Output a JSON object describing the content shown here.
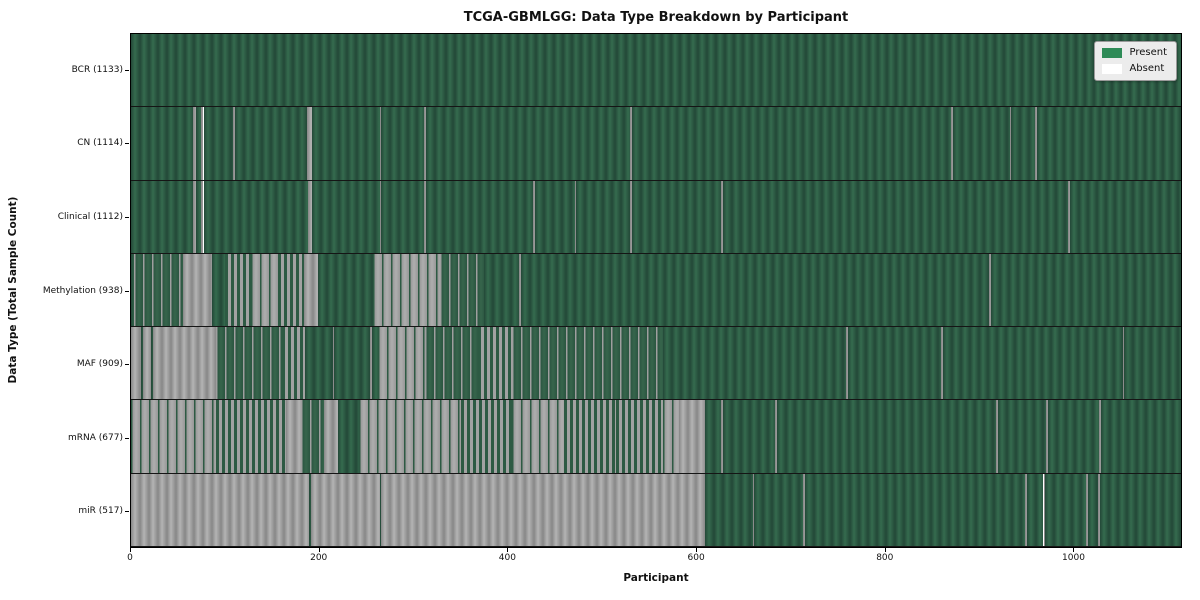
{
  "chart_data": {
    "type": "heatmap",
    "title": "TCGA-GBMLGG: Data Type Breakdown by Participant",
    "xlabel": "Participant",
    "ylabel": "Data Type (Total Sample Count)",
    "axis_max": 1115,
    "x_ticks": [
      0,
      200,
      400,
      600,
      800,
      1000
    ],
    "grid": false,
    "legend_position": "upper right",
    "legend": [
      {
        "label": "Present",
        "color": "#2e8b57"
      },
      {
        "label": "Absent",
        "color": "#ffffff"
      }
    ],
    "colors": {
      "present_fill": "#2e5c44",
      "present_stripe": "#356b4e",
      "absent_fill": "#9b9b9b",
      "absent_stripe": "#b4b4b4",
      "row_divider": "#151515",
      "legend_bg": "#ececec"
    },
    "segment_types": {
      "P": "present",
      "A": "absent",
      "M": "mixed",
      "SA": "mostly-present-scattered-absent",
      "SP": "mostly-absent-scattered-present"
    },
    "rows": [
      {
        "name": "BCR",
        "count": 1133,
        "label": "BCR (1133)",
        "segments": [
          [
            0,
            1115,
            "P"
          ]
        ]
      },
      {
        "name": "CN",
        "count": 1114,
        "label": "CN (1114)",
        "segments": [
          [
            0,
            66,
            "P"
          ],
          [
            66,
            69,
            "A"
          ],
          [
            69,
            74,
            "P"
          ],
          [
            74,
            77,
            "A"
          ],
          [
            77,
            108,
            "P"
          ],
          [
            108,
            110,
            "A"
          ],
          [
            110,
            187,
            "P"
          ],
          [
            187,
            192,
            "A"
          ],
          [
            192,
            264,
            "P"
          ],
          [
            264,
            266,
            "A"
          ],
          [
            266,
            311,
            "P"
          ],
          [
            311,
            313,
            "A"
          ],
          [
            313,
            530,
            "P"
          ],
          [
            530,
            532,
            "A"
          ],
          [
            532,
            871,
            "P"
          ],
          [
            871,
            873,
            "A"
          ],
          [
            873,
            933,
            "P"
          ],
          [
            933,
            935,
            "A"
          ],
          [
            935,
            960,
            "P"
          ],
          [
            960,
            962,
            "A"
          ],
          [
            962,
            1115,
            "P"
          ]
        ]
      },
      {
        "name": "Clinical",
        "count": 1112,
        "label": "Clinical (1112)",
        "segments": [
          [
            0,
            66,
            "P"
          ],
          [
            66,
            69,
            "A"
          ],
          [
            69,
            74,
            "P"
          ],
          [
            74,
            77,
            "A"
          ],
          [
            77,
            188,
            "P"
          ],
          [
            188,
            192,
            "A"
          ],
          [
            192,
            264,
            "P"
          ],
          [
            264,
            266,
            "A"
          ],
          [
            266,
            311,
            "P"
          ],
          [
            311,
            313,
            "A"
          ],
          [
            313,
            427,
            "P"
          ],
          [
            427,
            429,
            "A"
          ],
          [
            429,
            471,
            "P"
          ],
          [
            471,
            473,
            "A"
          ],
          [
            473,
            530,
            "P"
          ],
          [
            530,
            532,
            "A"
          ],
          [
            532,
            627,
            "P"
          ],
          [
            627,
            629,
            "A"
          ],
          [
            629,
            995,
            "P"
          ],
          [
            995,
            997,
            "A"
          ],
          [
            997,
            1115,
            "P"
          ]
        ]
      },
      {
        "name": "Methylation",
        "count": 938,
        "label": "Methylation (938)",
        "segments": [
          [
            0,
            3,
            "P"
          ],
          [
            3,
            55,
            "SA"
          ],
          [
            55,
            86,
            "A"
          ],
          [
            86,
            100,
            "P"
          ],
          [
            100,
            127,
            "M"
          ],
          [
            127,
            156,
            "SP"
          ],
          [
            156,
            184,
            "M"
          ],
          [
            184,
            199,
            "A"
          ],
          [
            199,
            257,
            "P"
          ],
          [
            257,
            328,
            "SP"
          ],
          [
            328,
            375,
            "SA"
          ],
          [
            375,
            412,
            "P"
          ],
          [
            412,
            414,
            "A"
          ],
          [
            414,
            911,
            "P"
          ],
          [
            911,
            913,
            "A"
          ],
          [
            913,
            1115,
            "P"
          ]
        ]
      },
      {
        "name": "MAF",
        "count": 909,
        "label": "MAF (909)",
        "segments": [
          [
            0,
            11,
            "A"
          ],
          [
            11,
            13,
            "P"
          ],
          [
            13,
            21,
            "A"
          ],
          [
            21,
            23,
            "P"
          ],
          [
            23,
            90,
            "A"
          ],
          [
            90,
            160,
            "SA"
          ],
          [
            160,
            185,
            "M"
          ],
          [
            185,
            214,
            "P"
          ],
          [
            214,
            216,
            "A"
          ],
          [
            216,
            254,
            "P"
          ],
          [
            254,
            256,
            "A"
          ],
          [
            256,
            262,
            "P"
          ],
          [
            262,
            312,
            "SP"
          ],
          [
            312,
            368,
            "SA"
          ],
          [
            368,
            405,
            "M"
          ],
          [
            405,
            565,
            "SA"
          ],
          [
            565,
            759,
            "P"
          ],
          [
            759,
            761,
            "A"
          ],
          [
            761,
            860,
            "P"
          ],
          [
            860,
            862,
            "A"
          ],
          [
            862,
            1053,
            "P"
          ],
          [
            1053,
            1055,
            "A"
          ],
          [
            1055,
            1115,
            "P"
          ]
        ]
      },
      {
        "name": "mRNA",
        "count": 677,
        "label": "mRNA (677)",
        "segments": [
          [
            0,
            90,
            "SP"
          ],
          [
            90,
            165,
            "M"
          ],
          [
            165,
            180,
            "A"
          ],
          [
            180,
            205,
            "SA"
          ],
          [
            205,
            220,
            "A"
          ],
          [
            220,
            242,
            "P"
          ],
          [
            242,
            350,
            "SP"
          ],
          [
            350,
            405,
            "M"
          ],
          [
            405,
            460,
            "SP"
          ],
          [
            460,
            515,
            "M"
          ],
          [
            515,
            565,
            "M"
          ],
          [
            565,
            582,
            "SP"
          ],
          [
            582,
            610,
            "A"
          ],
          [
            610,
            627,
            "P"
          ],
          [
            627,
            629,
            "A"
          ],
          [
            629,
            684,
            "P"
          ],
          [
            684,
            686,
            "A"
          ],
          [
            686,
            919,
            "P"
          ],
          [
            919,
            921,
            "A"
          ],
          [
            921,
            972,
            "P"
          ],
          [
            972,
            974,
            "A"
          ],
          [
            974,
            1028,
            "P"
          ],
          [
            1028,
            1030,
            "A"
          ],
          [
            1030,
            1115,
            "P"
          ]
        ]
      },
      {
        "name": "miR",
        "count": 517,
        "label": "miR (517)",
        "segments": [
          [
            0,
            189,
            "A"
          ],
          [
            189,
            191,
            "P"
          ],
          [
            191,
            264,
            "A"
          ],
          [
            264,
            266,
            "P"
          ],
          [
            266,
            610,
            "A"
          ],
          [
            610,
            660,
            "P"
          ],
          [
            660,
            662,
            "A"
          ],
          [
            662,
            714,
            "P"
          ],
          [
            714,
            716,
            "A"
          ],
          [
            716,
            949,
            "P"
          ],
          [
            949,
            951,
            "A"
          ],
          [
            951,
            969,
            "P"
          ],
          [
            969,
            971,
            "A"
          ],
          [
            971,
            1014,
            "P"
          ],
          [
            1014,
            1016,
            "A"
          ],
          [
            1016,
            1027,
            "P"
          ],
          [
            1027,
            1029,
            "A"
          ],
          [
            1029,
            1115,
            "P"
          ]
        ]
      }
    ]
  }
}
